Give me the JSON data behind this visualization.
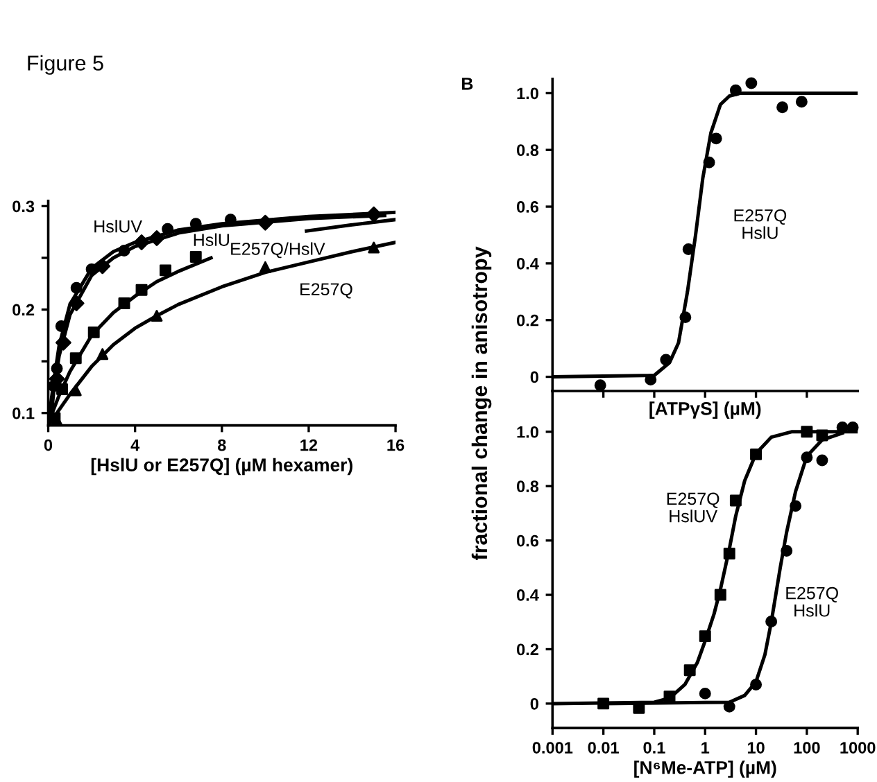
{
  "chart_data": [
    {
      "type": "scatter",
      "title": "Figure 5",
      "xlabel": "[HslU or E257Q] (µM hexamer)",
      "xlim": [
        0,
        16
      ],
      "xticks": [
        0,
        4,
        8,
        12,
        16
      ],
      "ylim": [
        0.088,
        0.305
      ],
      "yticks": [
        0.1,
        {
          "value": 0.15,
          "label": null
        },
        0.2,
        {
          "value": 0.25,
          "label": null
        },
        0.3
      ],
      "series": [
        {
          "type": "scatter",
          "marker": "circle",
          "color": "#000000",
          "x": [
            0.25,
            0.4,
            0.6,
            1.3,
            2,
            3.5,
            5.5,
            6.8,
            8.4
          ],
          "values": [
            0.126,
            0.143,
            0.184,
            0.221,
            0.239,
            0.257,
            0.278,
            0.283,
            0.287
          ]
        },
        {
          "type": "scatter",
          "marker": "diamond",
          "color": "#000000",
          "x": [
            0.4,
            0.7,
            1.3,
            2.5,
            4.3,
            5,
            10,
            15
          ],
          "values": [
            0.133,
            0.168,
            0.206,
            0.242,
            0.265,
            0.269,
            0.284,
            0.292
          ]
        },
        {
          "type": "scatter",
          "marker": "square",
          "color": "#000000",
          "x": [
            0.3,
            0.64,
            1.27,
            2.1,
            3.5,
            4.3,
            5.4,
            6.8
          ],
          "values": [
            0.095,
            0.123,
            0.153,
            0.178,
            0.206,
            0.219,
            0.238,
            0.251
          ]
        },
        {
          "type": "scatter",
          "marker": "triangle",
          "color": "#000000",
          "x": [
            0.4,
            1.27,
            2.5,
            5,
            10,
            15
          ],
          "values": [
            0.093,
            0.122,
            0.157,
            0.194,
            0.241,
            0.26
          ]
        },
        {
          "type": "line",
          "color": "#000000",
          "x": [
            0,
            0.25,
            0.5,
            1,
            2,
            3,
            4,
            6,
            8,
            12,
            16
          ],
          "values": [
            0.09,
            0.13,
            0.165,
            0.205,
            0.24,
            0.256,
            0.265,
            0.277,
            0.283,
            0.29,
            0.294
          ]
        },
        {
          "type": "line",
          "color": "#000000",
          "x": [
            0.15,
            0.25,
            0.5,
            1,
            2,
            3,
            4,
            6,
            8,
            12,
            15.5
          ],
          "values": [
            0.1,
            0.12,
            0.155,
            0.195,
            0.233,
            0.25,
            0.261,
            0.274,
            0.281,
            0.288,
            0.291
          ]
        },
        {
          "type": "line",
          "color": "#000000",
          "x": [
            0,
            0.5,
            1,
            2,
            3,
            4,
            5,
            6,
            7.5,
            9,
            11.9,
            14,
            16
          ],
          "values": [
            0.09,
            0.117,
            0.14,
            0.175,
            0.197,
            0.213,
            0.227,
            0.237,
            0.25,
            null,
            0.276,
            0.282,
            0.287
          ]
        },
        {
          "type": "line",
          "color": "#000000",
          "x": [
            0,
            1,
            2,
            3,
            4,
            5,
            6,
            8,
            10,
            12,
            14,
            16
          ],
          "values": [
            0.088,
            0.118,
            0.145,
            0.166,
            0.182,
            0.194,
            0.205,
            0.222,
            0.236,
            0.246,
            0.256,
            0.265
          ]
        }
      ],
      "annotations": [
        "HslUV",
        "HslU",
        "E257Q/HslV",
        "E257Q"
      ]
    },
    {
      "type": "scatter",
      "ylabel": "fractional change in anisotropy",
      "xlabel": "[ATPγS] (µM)",
      "log": "x",
      "tick_labels": "y",
      "xlim": [
        0.001,
        1000
      ],
      "xticks": [
        {
          "value": 0.01,
          "label": null
        },
        {
          "value": 0.1,
          "label": null
        },
        {
          "value": 1,
          "label": null
        },
        {
          "value": 10,
          "label": null
        },
        {
          "value": 100,
          "label": null
        }
      ],
      "ylim": [
        -0.05,
        1.05
      ],
      "yticks": [
        {
          "value": 0,
          "label": "0"
        },
        0.2,
        0.4,
        0.6,
        0.8,
        {
          "value": 1,
          "label": "1.0"
        }
      ],
      "series": [
        {
          "type": "scatter",
          "marker": "circle",
          "color": "#000000",
          "x": [
            0.0087,
            0.085,
            0.17,
            0.41,
            0.47,
            1.2,
            1.65,
            4,
            8.1,
            33,
            79
          ],
          "values": [
            -0.03,
            -0.01,
            0.06,
            0.21,
            0.45,
            0.756,
            0.84,
            1.01,
            1.035,
            0.95,
            0.97
          ]
        },
        {
          "type": "line",
          "color": "#000000",
          "x": [
            0.001,
            0.1,
            0.2,
            0.3,
            0.45,
            0.65,
            0.9,
            1.3,
            2,
            3,
            5,
            1000
          ],
          "values": [
            0,
            0.005,
            0.05,
            0.12,
            0.3,
            0.5,
            0.7,
            0.86,
            0.96,
            0.99,
            1.0,
            1.0
          ]
        }
      ],
      "annotations": [
        "B",
        "E257Q\nHslU"
      ]
    },
    {
      "type": "scatter",
      "xlabel": "[N⁶Me-ATP] (µM)",
      "log": "x",
      "xlim": [
        0.001,
        1000
      ],
      "xticks": [
        0.001,
        0.01,
        0.1,
        1,
        10,
        100,
        1000
      ],
      "ylim": [
        -0.09,
        1.15
      ],
      "yticks": [
        {
          "value": 0,
          "label": "0"
        },
        0.2,
        0.4,
        0.6,
        0.8,
        {
          "value": 1,
          "label": "1.0"
        }
      ],
      "series": [
        {
          "type": "scatter",
          "marker": "square",
          "color": "#000000",
          "x": [
            0.01,
            0.05,
            0.2,
            0.5,
            1,
            2,
            3,
            4,
            10,
            100,
            200
          ],
          "values": [
            0,
            -0.016,
            0.026,
            0.123,
            0.248,
            0.4,
            0.552,
            0.747,
            0.917,
            1.0,
            0.987
          ]
        },
        {
          "type": "scatter",
          "marker": "circle",
          "color": "#000000",
          "x": [
            1,
            3,
            10,
            20,
            40,
            60,
            100,
            200,
            500,
            800
          ],
          "values": [
            0.037,
            -0.011,
            0.07,
            0.302,
            0.562,
            0.727,
            0.906,
            0.895,
            1.016,
            1.016
          ]
        },
        {
          "type": "line",
          "color": "#000000",
          "x": [
            0.001,
            0.1,
            0.2,
            0.4,
            0.7,
            1,
            1.5,
            2,
            3,
            4,
            6,
            10,
            20,
            50,
            1000
          ],
          "values": [
            0,
            0.005,
            0.02,
            0.07,
            0.15,
            0.23,
            0.33,
            0.42,
            0.57,
            0.69,
            0.82,
            0.92,
            0.98,
            1.0,
            1.0
          ]
        },
        {
          "type": "line",
          "color": "#000000",
          "x": [
            0.01,
            3,
            6,
            10,
            15,
            20,
            30,
            40,
            60,
            100,
            200,
            500
          ],
          "values": [
            0,
            0.005,
            0.03,
            0.08,
            0.18,
            0.3,
            0.5,
            0.63,
            0.78,
            0.91,
            0.97,
            0.995
          ]
        }
      ],
      "annotations": [
        "E257Q\nHslUV",
        "E257Q\nHslU"
      ]
    }
  ]
}
